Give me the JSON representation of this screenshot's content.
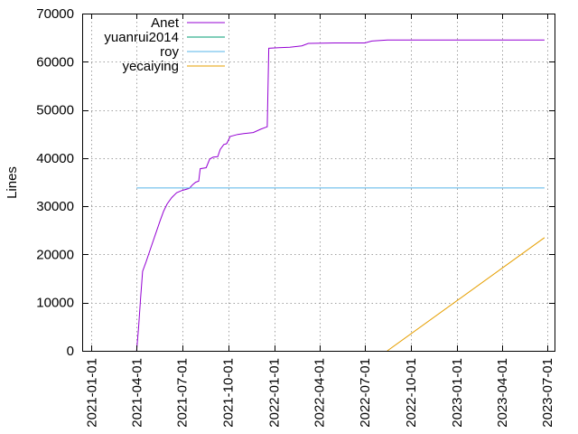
{
  "chart_data": {
    "type": "line",
    "title": "",
    "xlabel": "",
    "ylabel": "Lines",
    "x_type": "date",
    "xlim": [
      "2020-12-15",
      "2023-07-15"
    ],
    "ylim": [
      0,
      70000
    ],
    "x_ticks": [
      "2021-01-01",
      "2021-04-01",
      "2021-07-01",
      "2021-10-01",
      "2022-01-01",
      "2022-04-01",
      "2022-07-01",
      "2022-10-01",
      "2023-01-01",
      "2023-04-01",
      "2023-07-01"
    ],
    "y_ticks": [
      0,
      10000,
      20000,
      30000,
      40000,
      50000,
      60000,
      70000
    ],
    "y_tick_labels": [
      "0",
      "10000",
      "20000",
      "30000",
      "40000",
      "50000",
      "60000",
      "70000"
    ],
    "grid": true,
    "legend_position": "top-left",
    "series": [
      {
        "name": "Anet",
        "color": "#9400d3",
        "points": [
          [
            "2021-04-01",
            0
          ],
          [
            "2021-04-05",
            5000
          ],
          [
            "2021-04-09",
            11000
          ],
          [
            "2021-04-13",
            16500
          ],
          [
            "2021-04-20",
            18500
          ],
          [
            "2021-04-28",
            21000
          ],
          [
            "2021-05-08",
            24000
          ],
          [
            "2021-05-18",
            27000
          ],
          [
            "2021-05-25",
            29000
          ],
          [
            "2021-06-01",
            30500
          ],
          [
            "2021-06-10",
            31800
          ],
          [
            "2021-06-20",
            32800
          ],
          [
            "2021-07-01",
            33300
          ],
          [
            "2021-07-15",
            33700
          ],
          [
            "2021-07-22",
            34500
          ],
          [
            "2021-07-28",
            35000
          ],
          [
            "2021-08-03",
            35200
          ],
          [
            "2021-08-06",
            37800
          ],
          [
            "2021-08-18",
            38000
          ],
          [
            "2021-08-25",
            39800
          ],
          [
            "2021-09-01",
            40200
          ],
          [
            "2021-09-10",
            40300
          ],
          [
            "2021-09-15",
            41800
          ],
          [
            "2021-09-22",
            42800
          ],
          [
            "2021-09-28",
            43000
          ],
          [
            "2021-10-05",
            44500
          ],
          [
            "2021-10-20",
            44900
          ],
          [
            "2021-11-01",
            45100
          ],
          [
            "2021-11-20",
            45300
          ],
          [
            "2021-12-05",
            46000
          ],
          [
            "2021-12-18",
            46500
          ],
          [
            "2021-12-21",
            62800
          ],
          [
            "2022-01-10",
            62900
          ],
          [
            "2022-02-01",
            63000
          ],
          [
            "2022-02-25",
            63300
          ],
          [
            "2022-03-10",
            63800
          ],
          [
            "2022-05-01",
            63900
          ],
          [
            "2022-07-01",
            63900
          ],
          [
            "2022-07-15",
            64300
          ],
          [
            "2022-08-15",
            64500
          ],
          [
            "2023-06-25",
            64500
          ]
        ]
      },
      {
        "name": "yuanrui2014",
        "color": "#009e73",
        "points": []
      },
      {
        "name": "roy",
        "color": "#56b4e9",
        "points": [
          [
            "2021-04-01",
            33800
          ],
          [
            "2023-06-25",
            33800
          ]
        ]
      },
      {
        "name": "yecaiying",
        "color": "#e69f00",
        "points": [
          [
            "2022-08-15",
            0
          ],
          [
            "2023-06-25",
            23500
          ]
        ]
      }
    ]
  }
}
